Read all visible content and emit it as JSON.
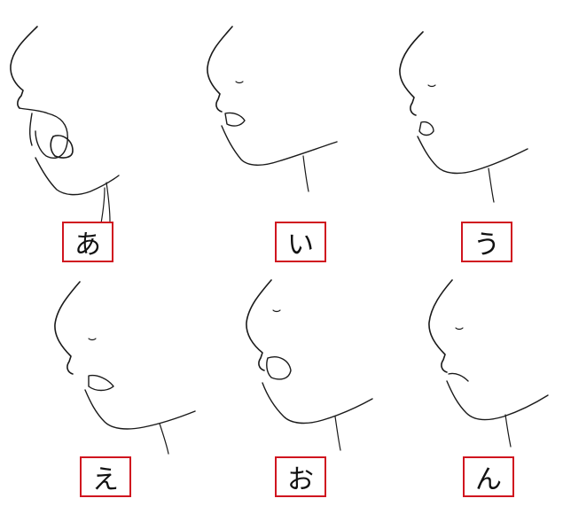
{
  "panels": [
    {
      "label": "あ"
    },
    {
      "label": "い"
    },
    {
      "label": "う"
    },
    {
      "label": "え"
    },
    {
      "label": "お"
    },
    {
      "label": "ん"
    }
  ],
  "colors": {
    "label_border": "#d0151f",
    "ink": "#1a1a1a",
    "background": "#ffffff"
  }
}
